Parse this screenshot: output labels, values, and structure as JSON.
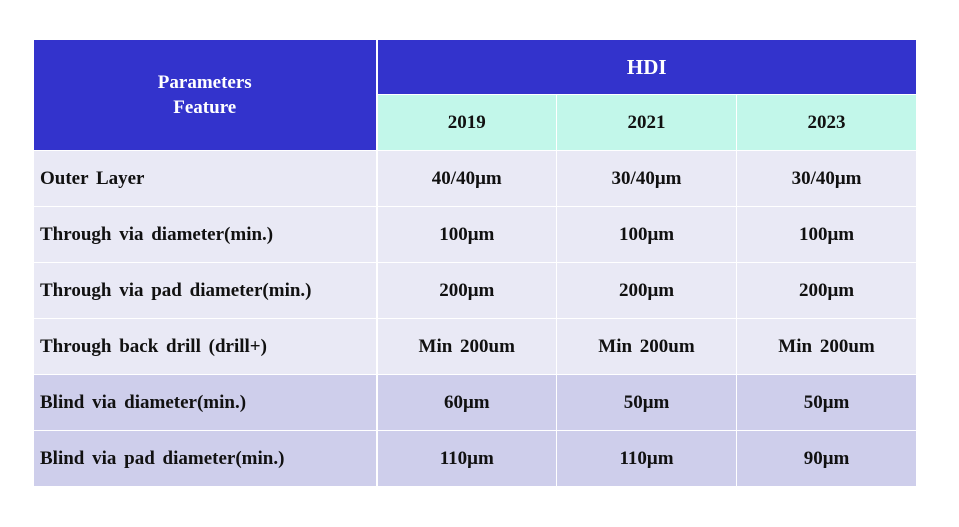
{
  "table": {
    "header": {
      "param_line1": "Parameters",
      "param_line2": "Feature",
      "group_title": "HDI",
      "years": [
        "2019",
        "2021",
        "2023"
      ]
    },
    "rows": [
      {
        "feature": "Outer Layer",
        "values": [
          "40/40μm",
          "30/40μm",
          "30/40μm"
        ],
        "shade": "light"
      },
      {
        "feature": "Through via diameter(min.)",
        "values": [
          "100μm",
          "100μm",
          "100μm"
        ],
        "shade": "light"
      },
      {
        "feature": "Through via pad diameter(min.)",
        "values": [
          "200μm",
          "200μm",
          "200μm"
        ],
        "shade": "light"
      },
      {
        "feature": "Through back drill (drill+)",
        "values": [
          "Min 200um",
          "Min 200um",
          "Min 200um"
        ],
        "shade": "light"
      },
      {
        "feature": "Blind via diameter(min.)",
        "values": [
          "60μm",
          "50μm",
          "50μm"
        ],
        "shade": "dark"
      },
      {
        "feature": "Blind via pad diameter(min.)",
        "values": [
          "110μm",
          "110μm",
          "90μm"
        ],
        "shade": "dark"
      }
    ],
    "colors": {
      "header_blue": "#3333cc",
      "year_row": "#c2f7ea",
      "row_light": "#e9e9f5",
      "row_dark": "#ceceeb"
    }
  }
}
